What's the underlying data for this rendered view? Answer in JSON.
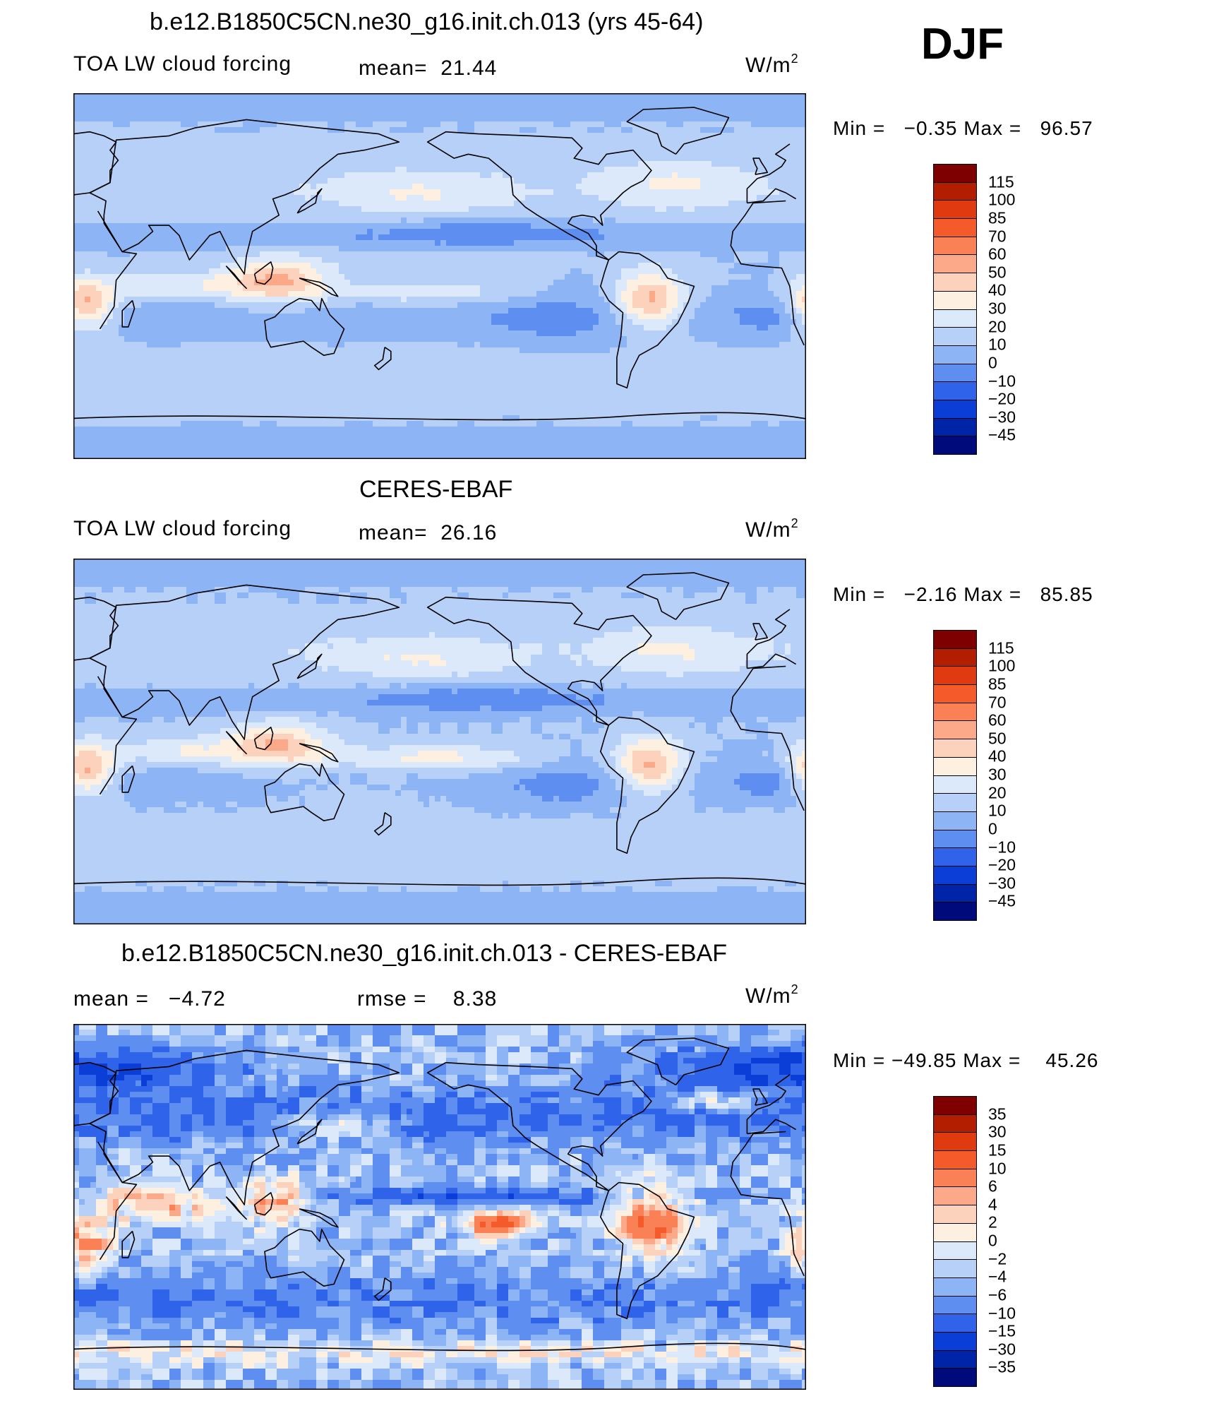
{
  "season": "DJF",
  "panels": [
    {
      "title": "b.e12.B1850C5CN.ne30_g16.init.ch.013 (yrs 45-64)",
      "variable": "TOA LW cloud forcing",
      "stat1_label": "mean=",
      "stat1_value": "21.44",
      "stat2_label": "",
      "stat2_value": "",
      "units_base": "W/m",
      "units_exp": "2",
      "min_label": "Min  =",
      "min_value": "−0.35",
      "max_label": "Max  =",
      "max_value": "96.57",
      "field": "model",
      "colorbar_levels": [
        "115",
        "100",
        "85",
        "70",
        "60",
        "50",
        "40",
        "30",
        "20",
        "10",
        "0",
        "−10",
        "−20",
        "−30",
        "−45"
      ],
      "colorbar_colors": [
        "#7f0000",
        "#b31e00",
        "#e03a10",
        "#f45a2a",
        "#fa8055",
        "#fca98a",
        "#fdd2bc",
        "#fdf0e0",
        "#dbe9fb",
        "#b6d0f8",
        "#8db4f5",
        "#5d8ef0",
        "#2e63ea",
        "#0b3ed6",
        "#0024a8",
        "#000a7a"
      ]
    },
    {
      "title": "CERES-EBAF",
      "variable": "TOA LW cloud forcing",
      "stat1_label": "mean=",
      "stat1_value": "26.16",
      "stat2_label": "",
      "stat2_value": "",
      "units_base": "W/m",
      "units_exp": "2",
      "min_label": "Min  =",
      "min_value": "−2.16",
      "max_label": "Max  =",
      "max_value": "85.85",
      "field": "obs",
      "colorbar_levels": [
        "115",
        "100",
        "85",
        "70",
        "60",
        "50",
        "40",
        "30",
        "20",
        "10",
        "0",
        "−10",
        "−20",
        "−30",
        "−45"
      ],
      "colorbar_colors": [
        "#7f0000",
        "#b31e00",
        "#e03a10",
        "#f45a2a",
        "#fa8055",
        "#fca98a",
        "#fdd2bc",
        "#fdf0e0",
        "#dbe9fb",
        "#b6d0f8",
        "#8db4f5",
        "#5d8ef0",
        "#2e63ea",
        "#0b3ed6",
        "#0024a8",
        "#000a7a"
      ]
    },
    {
      "title": "b.e12.B1850C5CN.ne30_g16.init.ch.013 - CERES-EBAF",
      "variable": "",
      "stat1_label": "mean  =",
      "stat1_value": "−4.72",
      "stat2_label": "rmse  =",
      "stat2_value": "8.38",
      "units_base": "W/m",
      "units_exp": "2",
      "min_label": "Min  =",
      "min_value": "−49.85",
      "max_label": "Max  =",
      "max_value": "45.26",
      "field": "diff",
      "colorbar_levels": [
        "35",
        "30",
        "15",
        "10",
        "6",
        "4",
        "2",
        "0",
        "−2",
        "−4",
        "−6",
        "−10",
        "−15",
        "−30",
        "−35"
      ],
      "colorbar_colors": [
        "#7f0000",
        "#b31e00",
        "#e03a10",
        "#f45a2a",
        "#fa8055",
        "#fca98a",
        "#fdd2bc",
        "#fdf0e0",
        "#dbe9fb",
        "#b6d0f8",
        "#8db4f5",
        "#5d8ef0",
        "#2e63ea",
        "#0b3ed6",
        "#0024a8",
        "#000a7a"
      ]
    }
  ]
}
